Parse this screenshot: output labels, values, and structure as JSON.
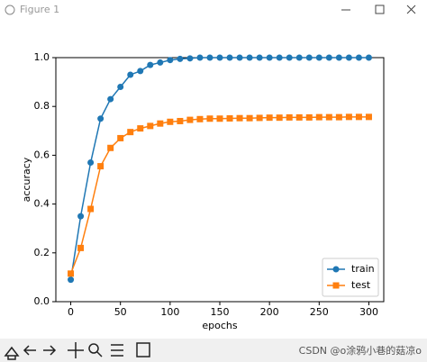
{
  "window": {
    "title": "Figure 1",
    "watermark": "CSDN @o涂鸦小巷的菇凉o"
  },
  "chart_data": {
    "type": "line",
    "xlabel": "epochs",
    "ylabel": "accuracy",
    "x": [
      0,
      10,
      20,
      30,
      40,
      50,
      60,
      70,
      80,
      90,
      100,
      110,
      120,
      130,
      140,
      150,
      160,
      170,
      180,
      190,
      200,
      210,
      220,
      230,
      240,
      250,
      260,
      270,
      280,
      290,
      300
    ],
    "series": [
      {
        "name": "train",
        "color": "#1f77b4",
        "marker": "circle",
        "values": [
          0.09,
          0.35,
          0.57,
          0.75,
          0.83,
          0.88,
          0.93,
          0.945,
          0.97,
          0.98,
          0.99,
          0.995,
          0.997,
          1,
          1,
          1,
          1,
          1,
          1,
          1,
          1,
          1,
          1,
          1,
          1,
          1,
          1,
          1,
          1,
          1,
          1
        ]
      },
      {
        "name": "test",
        "color": "#ff7f0e",
        "marker": "square",
        "values": [
          0.115,
          0.22,
          0.38,
          0.555,
          0.63,
          0.67,
          0.695,
          0.71,
          0.72,
          0.73,
          0.737,
          0.74,
          0.745,
          0.748,
          0.75,
          0.75,
          0.751,
          0.752,
          0.752,
          0.753,
          0.754,
          0.754,
          0.755,
          0.755,
          0.755,
          0.756,
          0.756,
          0.756,
          0.757,
          0.757,
          0.757
        ]
      }
    ],
    "xlim": [
      -15,
      315
    ],
    "ylim": [
      0,
      1
    ],
    "xticks": [
      0,
      50,
      100,
      150,
      200,
      250,
      300
    ],
    "yticks": [
      {
        "value": 0,
        "label": "0.0"
      },
      {
        "value": 0.2,
        "label": "0.2"
      },
      {
        "value": 0.4,
        "label": "0.4"
      },
      {
        "value": 0.6,
        "label": "0.6"
      },
      {
        "value": 0.8,
        "label": "0.8"
      },
      {
        "value": 1,
        "label": "1.0"
      }
    ],
    "legend": "lower right"
  }
}
